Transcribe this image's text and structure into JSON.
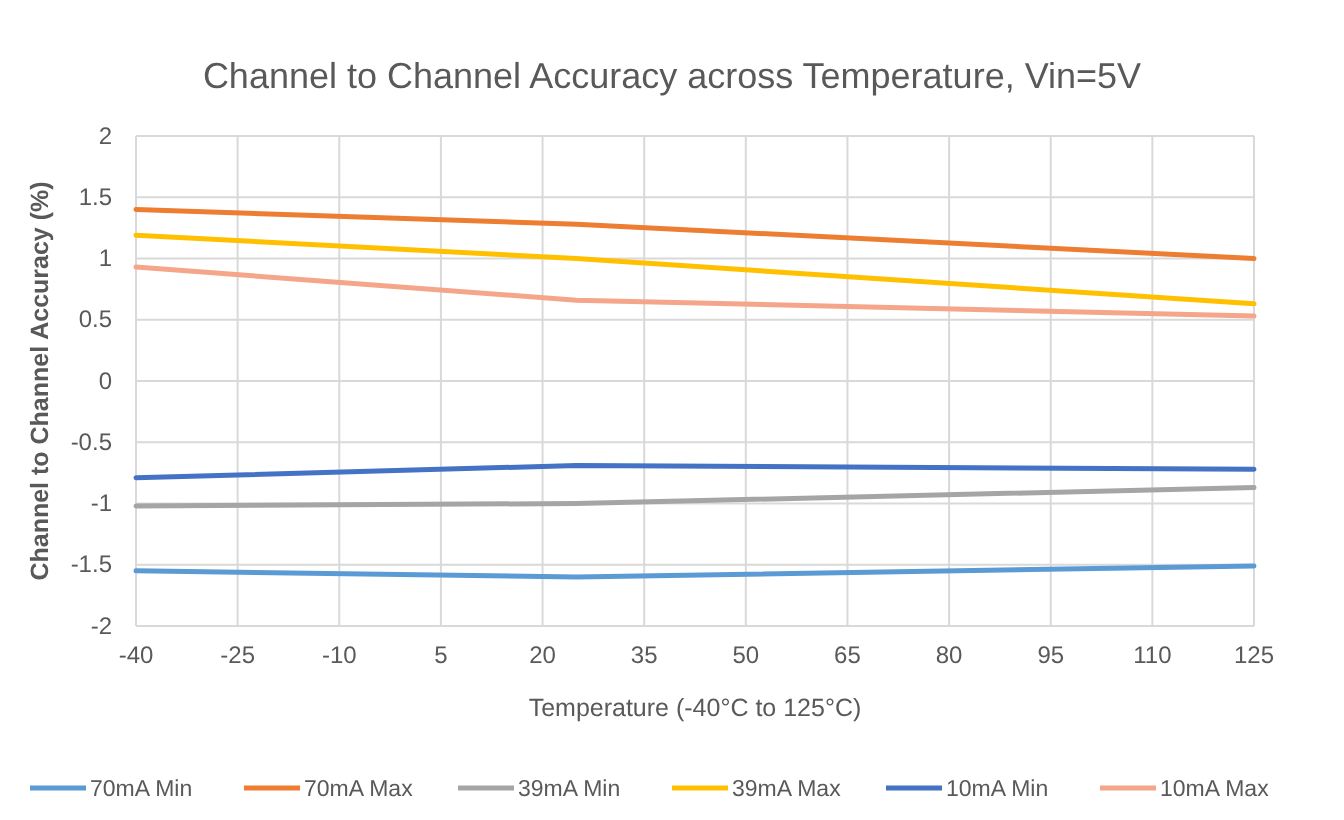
{
  "chart_data": {
    "type": "line",
    "title": "Channel to Channel Accuracy across Temperature, Vin=5V",
    "xlabel": "Temperature (-40°C to 125°C)",
    "ylabel": "Channel to Channel Accuracy (%)",
    "x": [
      -40,
      25,
      125
    ],
    "xlim": [
      -40,
      125
    ],
    "xticks": [
      -40,
      -25,
      -10,
      5,
      20,
      35,
      50,
      65,
      80,
      95,
      110,
      125
    ],
    "ylim": [
      -2,
      2
    ],
    "yticks": [
      -2,
      -1.5,
      -1,
      -0.5,
      0,
      0.5,
      1,
      1.5,
      2
    ],
    "grid": true,
    "legend": "bottom",
    "marker": "none",
    "line_style": "solid",
    "series": [
      {
        "name": "70mA Min",
        "color": "#5b9bd5",
        "values": [
          -1.55,
          -1.6,
          -1.51
        ]
      },
      {
        "name": "70mA Max",
        "color": "#ed7d31",
        "values": [
          1.4,
          1.28,
          1.0
        ]
      },
      {
        "name": "39mA Min",
        "color": "#a5a5a5",
        "values": [
          -1.02,
          -1.0,
          -0.87
        ]
      },
      {
        "name": "39mA Max",
        "color": "#ffc000",
        "values": [
          1.19,
          1.0,
          0.63
        ]
      },
      {
        "name": "10mA Min",
        "color": "#4472c4",
        "values": [
          -0.79,
          -0.69,
          -0.72
        ]
      },
      {
        "name": "10mA Max",
        "color": "#f4a58a",
        "values": [
          0.93,
          0.66,
          0.53
        ]
      }
    ]
  }
}
